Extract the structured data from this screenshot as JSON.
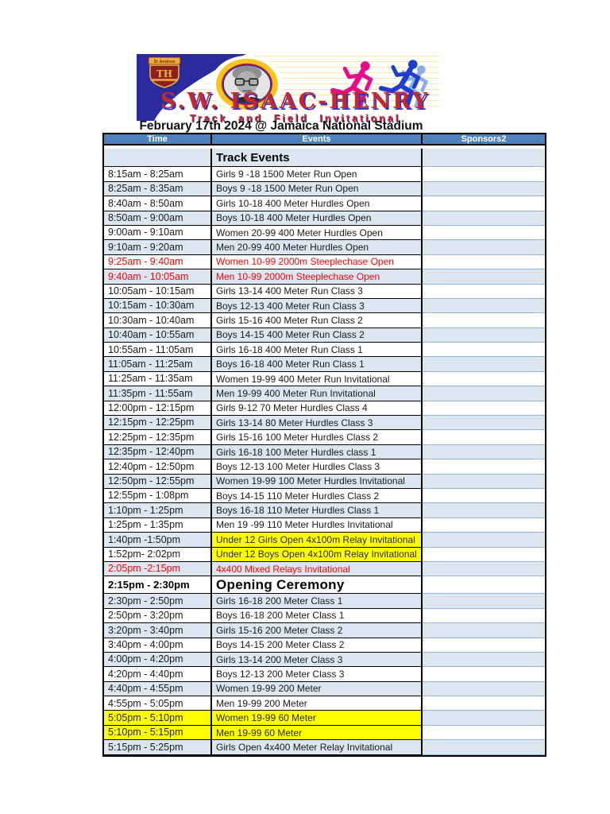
{
  "banner": {
    "title": "S.W. ISAAC-HENRY",
    "subtitle": "Track and Field Invitational",
    "crest": {
      "ribbon_text": "St Andrew",
      "monogram": "TH"
    }
  },
  "date_line": "February 17th 2024 @ Jamaica National Stadium",
  "table": {
    "columns": [
      "Time",
      "Events",
      "Sponsors2"
    ],
    "section_header": "Track Events",
    "rows": [
      {
        "time": "8:15am - 8:25am",
        "event": "Girls 9 -18 1500 Meter Run Open",
        "style": ""
      },
      {
        "time": "8:25am - 8:35am",
        "event": "Boys 9 -18 1500 Meter Run Open",
        "style": ""
      },
      {
        "time": "8:40am - 8:50am",
        "event": "Girls 10-18 400 Meter Hurdles Open",
        "style": ""
      },
      {
        "time": "8:50am - 9:00am",
        "event": "Boys 10-18 400 Meter Hurdles Open",
        "style": ""
      },
      {
        "time": "9:00am - 9:10am",
        "event": "Women 20-99 400 Meter Hurdles Open",
        "style": ""
      },
      {
        "time": "9:10am - 9:20am",
        "event": "Men 20-99 400 Meter Hurdles Open",
        "style": ""
      },
      {
        "time": "9:25am - 9:40am",
        "event": "Women 10-99 2000m Steeplechase Open",
        "style": "red"
      },
      {
        "time": "9:40am - 10:05am",
        "event": "Men 10-99 2000m Steeplechase Open",
        "style": "red"
      },
      {
        "time": "10:05am - 10:15am",
        "event": "Girls 13-14 400 Meter Run Class 3",
        "style": ""
      },
      {
        "time": "10:15am - 10:30am",
        "event": "Boys 12-13 400 Meter Run Class 3",
        "style": ""
      },
      {
        "time": "10:30am - 10:40am",
        "event": "Girls 15-16 400 Meter Run Class 2",
        "style": ""
      },
      {
        "time": "10:40am - 10:55am",
        "event": "Boys 14-15 400 Meter Run Class 2",
        "style": ""
      },
      {
        "time": "10:55am - 11:05am",
        "event": "Girls 16-18 400 Meter Run Class 1",
        "style": ""
      },
      {
        "time": "11:05am - 11:25am",
        "event": "Boys 16-18 400 Meter Run Class 1",
        "style": ""
      },
      {
        "time": "11:25am - 11:35am",
        "event": "Women 19-99 400 Meter Run Invitational",
        "style": ""
      },
      {
        "time": "11:35pm - 11:55am",
        "event": "Men 19-99 400 Meter Run Invitational",
        "style": ""
      },
      {
        "time": "12:00pm - 12:15pm",
        "event": "Girls 9-12 70 Meter Hurdles Class 4",
        "style": ""
      },
      {
        "time": "12:15pm - 12:25pm",
        "event": "Girls 13-14 80 Meter Hurdles Class 3",
        "style": ""
      },
      {
        "time": "12:25pm - 12:35pm",
        "event": "Girls 15-16 100 Meter Hurdles Class 2",
        "style": ""
      },
      {
        "time": "12:35pm - 12:40pm",
        "event": "Girls 16-18 100 Meter Hurdles class 1",
        "style": ""
      },
      {
        "time": "12:40pm - 12:50pm",
        "event": "Boys 12-13 100 Meter Hurdles Class 3",
        "style": ""
      },
      {
        "time": "12:50pm - 12:55pm",
        "event": "Women 19-99 100 Meter Hurdles Invitational",
        "style": ""
      },
      {
        "time": "12:55pm - 1:08pm",
        "event": "Boys 14-15 110 Meter Hurdles Class 2",
        "style": ""
      },
      {
        "time": "1:10pm - 1:25pm",
        "event": "Boys 16-18 110 Meter Hurdles Class 1",
        "style": ""
      },
      {
        "time": "1:25pm - 1:35pm",
        "event": "Men 19 -99 110 Meter Hurdles Invitational",
        "style": ""
      },
      {
        "time": "1:40pm -1:50pm",
        "event": "Under 12 Girls Open 4x100m Relay Invitational",
        "style": "yellow-event"
      },
      {
        "time": "1:52pm- 2:02pm",
        "event": "Under 12 Boys Open 4x100m Relay Invitational",
        "style": "yellow-event"
      },
      {
        "time": "2:05pm -2:15pm",
        "event": "4x400 Mixed Relays Invitational",
        "style": "red"
      },
      {
        "time": "2:15pm - 2:30pm",
        "event": "Opening Ceremony",
        "style": "ceremony"
      },
      {
        "time": "2:30pm - 2:50pm",
        "event": "Girls 16-18 200 Meter Class 1",
        "style": ""
      },
      {
        "time": "2:50pm - 3:20pm",
        "event": "Boys 16-18 200 Meter Class 1",
        "style": ""
      },
      {
        "time": "3:20pm - 3:40pm",
        "event": "Girls 15-16 200 Meter Class 2",
        "style": ""
      },
      {
        "time": "3:40pm - 4:00pm",
        "event": "Boys 14-15 200 Meter Class 2",
        "style": ""
      },
      {
        "time": "4:00pm - 4:20pm",
        "event": "Girls 13-14 200 Meter Class 3",
        "style": ""
      },
      {
        "time": "4:20pm - 4:40pm",
        "event": "Boys 12-13 200 Meter Class 3",
        "style": ""
      },
      {
        "time": "4:40pm - 4:55pm",
        "event": "Women 19-99 200 Meter",
        "style": ""
      },
      {
        "time": "4:55pm - 5:05pm",
        "event": "Men 19-99 200 Meter",
        "style": ""
      },
      {
        "time": "5:05pm - 5:10pm",
        "event": "Women 19-99 60 Meter",
        "style": "yellow-row"
      },
      {
        "time": "5:10pm - 5:15pm",
        "event": "Men 19-99 60 Meter",
        "style": "yellow-row"
      },
      {
        "time": "5:15pm - 5:25pm",
        "event": "Girls Open 4x400 Meter Relay Invitational",
        "style": ""
      }
    ]
  },
  "colors": {
    "header_blue": "#4f81bd",
    "stripe_blue": "#dce6f1",
    "sponsor_border_blue": "#95b3d7",
    "highlight_yellow": "#ffff00",
    "alert_red": "#ff0000",
    "banner_navy": "#2b2b9e",
    "title_red": "#c5282f",
    "title_shadow_blue": "#2b35c0",
    "subtitle_red": "#dd2c22",
    "crest_maroon": "#8f1f1f",
    "crest_gold": "#e8b33a",
    "runner_magenta": "#e60d8a",
    "runner_blue": "#1f3ecc",
    "runner_lightblue": "#7fa6e8"
  }
}
